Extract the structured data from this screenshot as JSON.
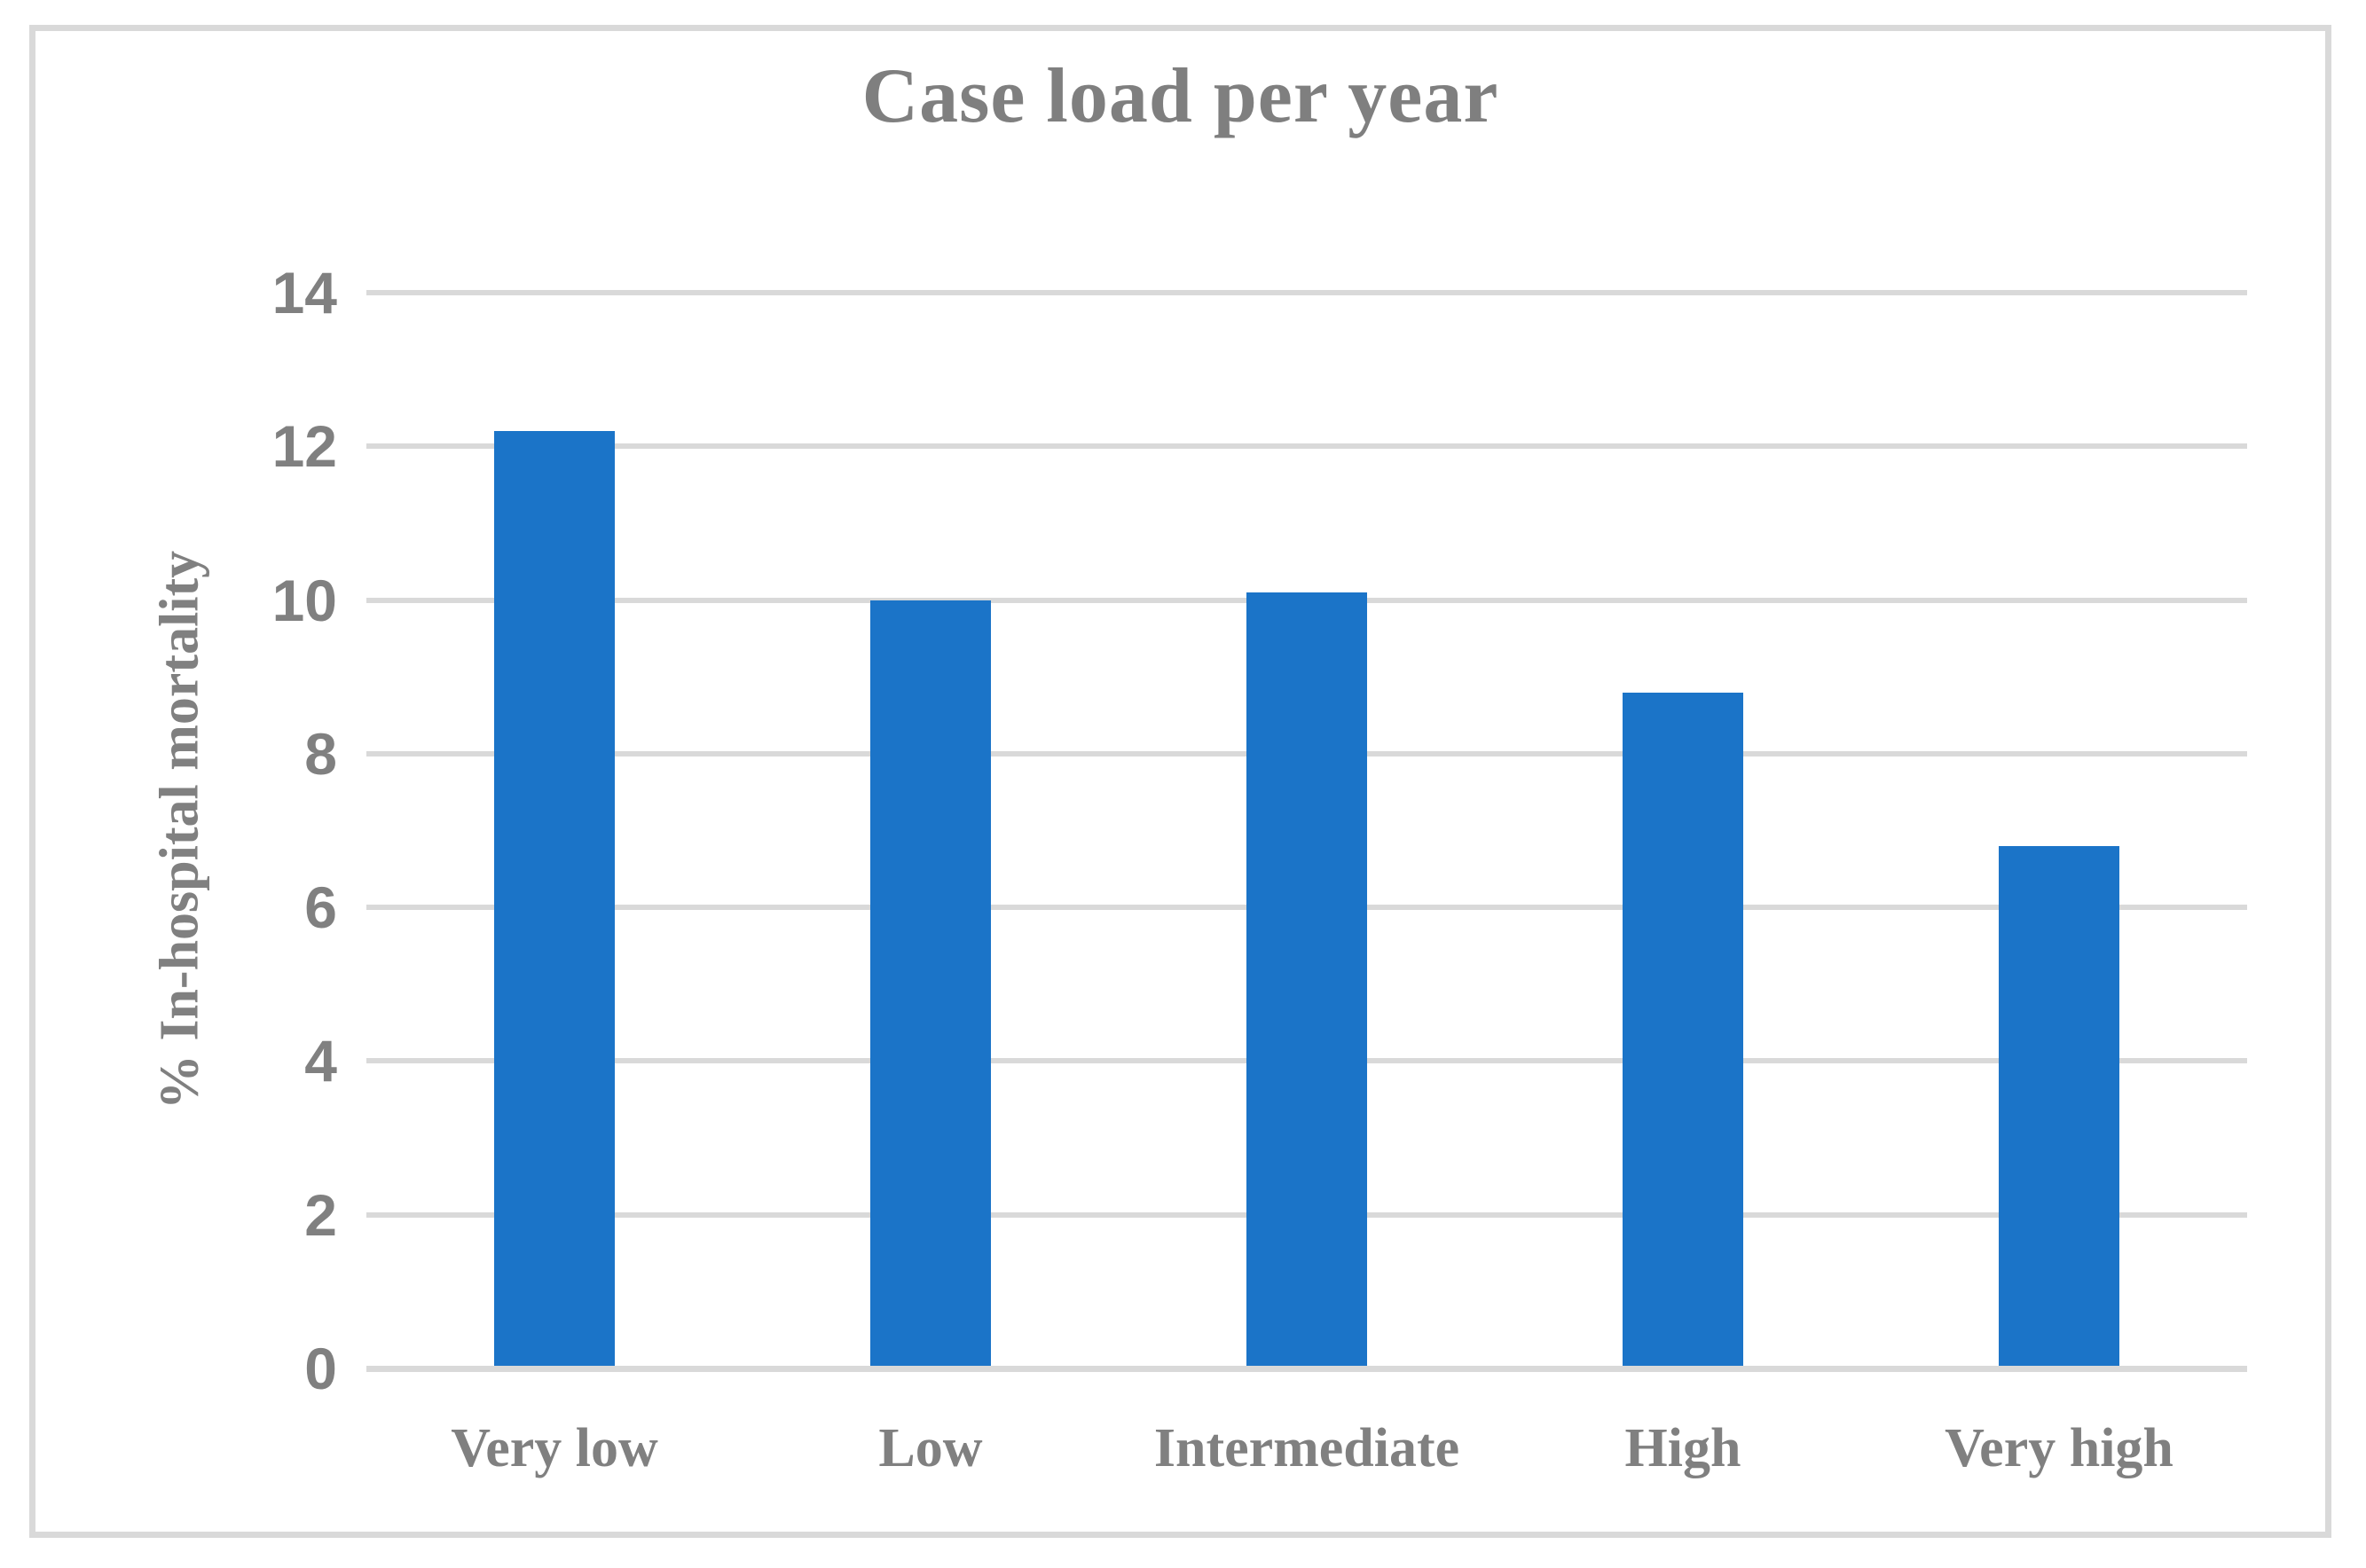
{
  "figure": {
    "border_color": "#d9d9d9",
    "background_color": "#ffffff",
    "text_color": "#808080"
  },
  "chart_data": {
    "type": "bar",
    "title": "Case load per year",
    "categories": [
      "Very low",
      "Low",
      "Intermediate",
      "High",
      "Very high"
    ],
    "values": [
      12.2,
      10.0,
      10.1,
      8.8,
      6.8
    ],
    "xlabel": "",
    "ylabel": "% In-hospital mortality",
    "ylim": [
      0,
      14
    ],
    "yticks": [
      0,
      2,
      4,
      6,
      8,
      10,
      12,
      14
    ],
    "grid": "horizontal",
    "legend": "none",
    "bar_color": "#1b74c8",
    "gridline_color": "#d9d9d9",
    "axis_line_color": "#d9d9d9"
  }
}
